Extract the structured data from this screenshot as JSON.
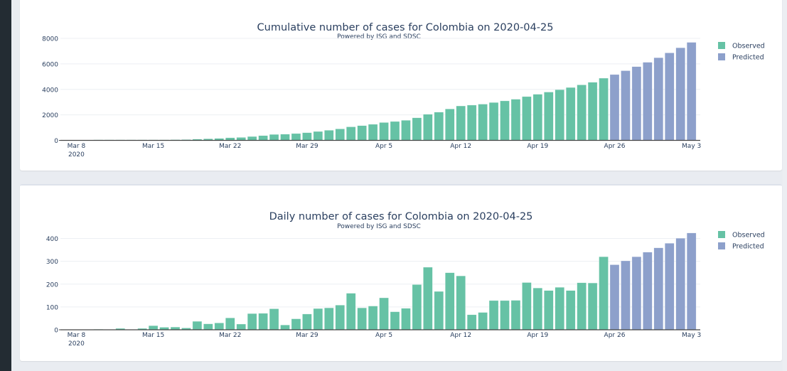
{
  "chart_data": [
    {
      "type": "bar",
      "title": "Cumulative number of cases for Colombia on 2020-04-25",
      "subtitle": "Powered by ISG and SDSC",
      "xlabel": "",
      "ylabel": "",
      "ylim": [
        0,
        8000
      ],
      "yticks": [
        "0",
        "2000",
        "4000",
        "6000",
        "8000"
      ],
      "ytick_values": [
        0,
        2000,
        4000,
        6000,
        8000
      ],
      "xticks": [
        {
          "day": 1,
          "label": "Mar 8",
          "sublabel": "2020"
        },
        {
          "day": 8,
          "label": "Mar 15"
        },
        {
          "day": 15,
          "label": "Mar 22"
        },
        {
          "day": 22,
          "label": "Mar 29"
        },
        {
          "day": 29,
          "label": "Apr 5"
        },
        {
          "day": 36,
          "label": "Apr 12"
        },
        {
          "day": 43,
          "label": "Apr 19"
        },
        {
          "day": 50,
          "label": "Apr 26"
        },
        {
          "day": 57,
          "label": "May 3"
        }
      ],
      "grid": true,
      "legend_position": "top-right",
      "series": [
        {
          "name": "Observed",
          "color": "#66c2a5",
          "start_date": "Mar 7",
          "values": [
            0,
            0,
            0,
            1,
            1,
            7,
            7,
            13,
            31,
            42,
            54,
            62,
            99,
            125,
            155,
            207,
            232,
            303,
            375,
            467,
            488,
            536,
            605,
            698,
            794,
            902,
            1062,
            1158,
            1262,
            1402,
            1481,
            1575,
            1773,
            2047,
            2215,
            2465,
            2701,
            2767,
            2843,
            2971,
            3099,
            3228,
            3435,
            3618,
            3790,
            3976,
            4148,
            4354,
            4559,
            4879
          ]
        },
        {
          "name": "Predicted",
          "color": "#8da0cb",
          "start_date": "Apr 26",
          "values": [
            5164,
            5466,
            5786,
            6126,
            6485,
            6864,
            7265,
            7689
          ]
        }
      ]
    },
    {
      "type": "bar",
      "title": "Daily number of cases for Colombia on 2020-04-25",
      "subtitle": "Powered by ISG and SDSC",
      "xlabel": "",
      "ylabel": "",
      "ylim": [
        0,
        430
      ],
      "yticks": [
        "0",
        "100",
        "200",
        "300",
        "400"
      ],
      "ytick_values": [
        0,
        100,
        200,
        300,
        400
      ],
      "xticks": [
        {
          "day": 1,
          "label": "Mar 8",
          "sublabel": "2020"
        },
        {
          "day": 8,
          "label": "Mar 15"
        },
        {
          "day": 15,
          "label": "Mar 22"
        },
        {
          "day": 22,
          "label": "Mar 29"
        },
        {
          "day": 29,
          "label": "Apr 5"
        },
        {
          "day": 36,
          "label": "Apr 12"
        },
        {
          "day": 43,
          "label": "Apr 19"
        },
        {
          "day": 50,
          "label": "Apr 26"
        },
        {
          "day": 57,
          "label": "May 3"
        }
      ],
      "grid": true,
      "legend_position": "top-right",
      "series": [
        {
          "name": "Observed",
          "color": "#66c2a5",
          "start_date": "Mar 7",
          "values": [
            0,
            0,
            0,
            1,
            0,
            6,
            0,
            6,
            18,
            11,
            12,
            8,
            37,
            26,
            30,
            52,
            25,
            71,
            72,
            92,
            21,
            48,
            69,
            93,
            96,
            108,
            160,
            96,
            104,
            140,
            79,
            94,
            198,
            274,
            168,
            250,
            236,
            66,
            76,
            128,
            128,
            129,
            207,
            183,
            172,
            186,
            172,
            206,
            205,
            320
          ]
        },
        {
          "name": "Predicted",
          "color": "#8da0cb",
          "start_date": "Apr 26",
          "values": [
            285,
            302,
            320,
            340,
            359,
            379,
            401,
            424
          ]
        }
      ]
    }
  ]
}
